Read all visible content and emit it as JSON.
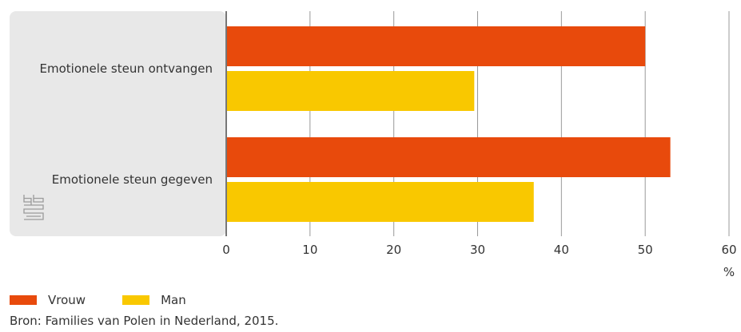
{
  "chart_data": {
    "type": "bar",
    "orientation": "horizontal",
    "categories": [
      "Emotionele steun ontvangen",
      "Emotionele steun gegeven"
    ],
    "series": [
      {
        "name": "Vrouw",
        "color": "#e84a0c",
        "values": [
          50,
          53
        ]
      },
      {
        "name": "Man",
        "color": "#f9c800",
        "values": [
          29.6,
          36.7
        ]
      }
    ],
    "xlim": [
      0,
      60
    ],
    "xticks": [
      "0",
      "10",
      "20",
      "30",
      "40",
      "50",
      "60"
    ],
    "xunit": "%",
    "grid": true,
    "legend_position": "bottom-left"
  },
  "source": "Bron: Families van Polen in Nederland, 2015.",
  "logo": "cbs",
  "colors": {
    "panel": "#e8e8e8",
    "grid": "#999999",
    "axis": "#777777"
  }
}
